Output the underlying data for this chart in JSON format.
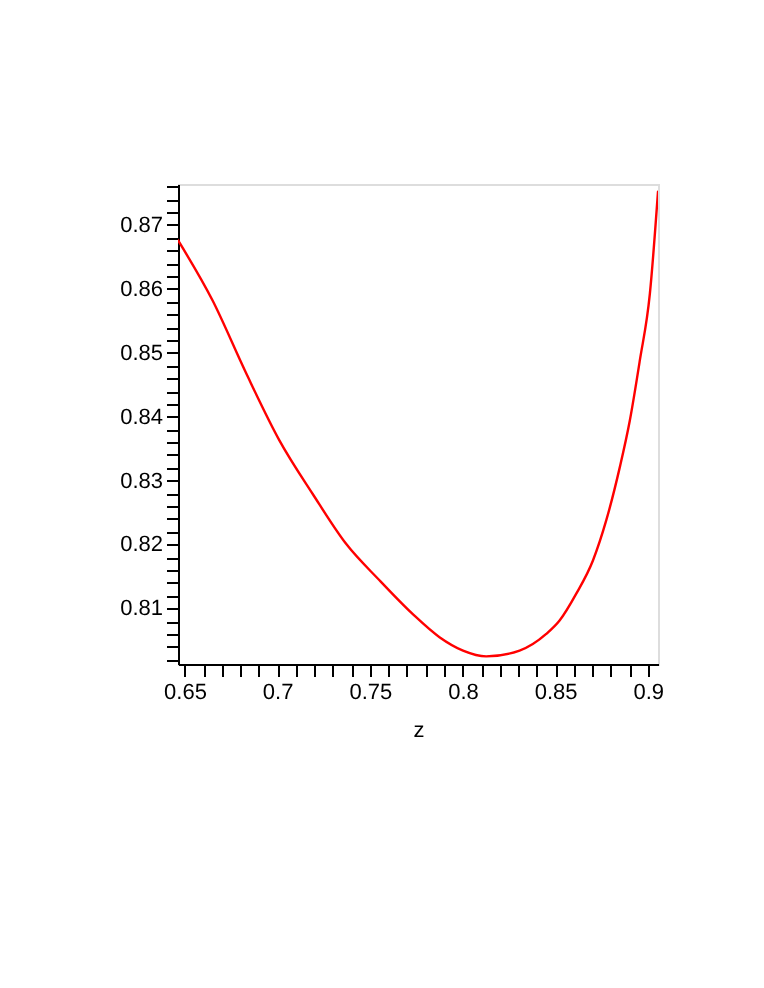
{
  "chart_data": {
    "type": "line",
    "xlabel": "z",
    "series": [
      {
        "color": "#ff0000",
        "x": [
          0.6465,
          0.6651,
          0.6831,
          0.7012,
          0.7192,
          0.7372,
          0.7552,
          0.7732,
          0.7876,
          0.8003,
          0.8128,
          0.8308,
          0.8452,
          0.8524,
          0.8614,
          0.8704,
          0.8776,
          0.8849,
          0.8903,
          0.8957,
          0.9011,
          0.9055
        ],
        "values": [
          0.8676,
          0.8582,
          0.8469,
          0.8363,
          0.8279,
          0.8201,
          0.8144,
          0.8091,
          0.8055,
          0.8034,
          0.8025,
          0.8034,
          0.806,
          0.8081,
          0.8123,
          0.8175,
          0.8238,
          0.8321,
          0.8394,
          0.8488,
          0.8592,
          0.8752
        ]
      }
    ],
    "xlim": [
      0.6465,
      0.9055
    ],
    "ylim": [
      0.8013,
      0.8764
    ],
    "xticks": [
      {
        "value": 0.65,
        "label": "0.65"
      },
      {
        "value": 0.66,
        "label": null
      },
      {
        "value": 0.67,
        "label": null
      },
      {
        "value": 0.68,
        "label": null
      },
      {
        "value": 0.69,
        "label": null
      },
      {
        "value": 0.7,
        "label": "0.7"
      },
      {
        "value": 0.71,
        "label": null
      },
      {
        "value": 0.72,
        "label": null
      },
      {
        "value": 0.73,
        "label": null
      },
      {
        "value": 0.74,
        "label": null
      },
      {
        "value": 0.75,
        "label": "0.75"
      },
      {
        "value": 0.76,
        "label": null
      },
      {
        "value": 0.77,
        "label": null
      },
      {
        "value": 0.78,
        "label": null
      },
      {
        "value": 0.79,
        "label": null
      },
      {
        "value": 0.8,
        "label": "0.8"
      },
      {
        "value": 0.81,
        "label": null
      },
      {
        "value": 0.82,
        "label": null
      },
      {
        "value": 0.83,
        "label": null
      },
      {
        "value": 0.84,
        "label": null
      },
      {
        "value": 0.85,
        "label": "0.85"
      },
      {
        "value": 0.86,
        "label": null
      },
      {
        "value": 0.87,
        "label": null
      },
      {
        "value": 0.88,
        "label": null
      },
      {
        "value": 0.89,
        "label": null
      },
      {
        "value": 0.9,
        "label": "0.9"
      }
    ],
    "yticks": [
      {
        "value": 0.802,
        "label": null
      },
      {
        "value": 0.804,
        "label": null
      },
      {
        "value": 0.806,
        "label": null
      },
      {
        "value": 0.808,
        "label": null
      },
      0.81,
      {
        "value": 0.812,
        "label": null
      },
      {
        "value": 0.814,
        "label": null
      },
      {
        "value": 0.816,
        "label": null
      },
      {
        "value": 0.818,
        "label": null
      },
      0.82,
      {
        "value": 0.822,
        "label": null
      },
      {
        "value": 0.824,
        "label": null
      },
      {
        "value": 0.826,
        "label": null
      },
      {
        "value": 0.828,
        "label": null
      },
      0.83,
      {
        "value": 0.832,
        "label": null
      },
      {
        "value": 0.834,
        "label": null
      },
      {
        "value": 0.836,
        "label": null
      },
      {
        "value": 0.838,
        "label": null
      },
      0.84,
      {
        "value": 0.842,
        "label": null
      },
      {
        "value": 0.844,
        "label": null
      },
      {
        "value": 0.846,
        "label": null
      },
      {
        "value": 0.848,
        "label": null
      },
      0.85,
      {
        "value": 0.852,
        "label": null
      },
      {
        "value": 0.854,
        "label": null
      },
      {
        "value": 0.856,
        "label": null
      },
      {
        "value": 0.858,
        "label": null
      },
      0.86,
      {
        "value": 0.862,
        "label": null
      },
      {
        "value": 0.864,
        "label": null
      },
      {
        "value": 0.866,
        "label": null
      },
      {
        "value": 0.868,
        "label": null
      },
      0.87,
      {
        "value": 0.872,
        "label": null
      },
      {
        "value": 0.874,
        "label": null
      },
      {
        "value": 0.876,
        "label": null
      }
    ],
    "grid": false
  }
}
